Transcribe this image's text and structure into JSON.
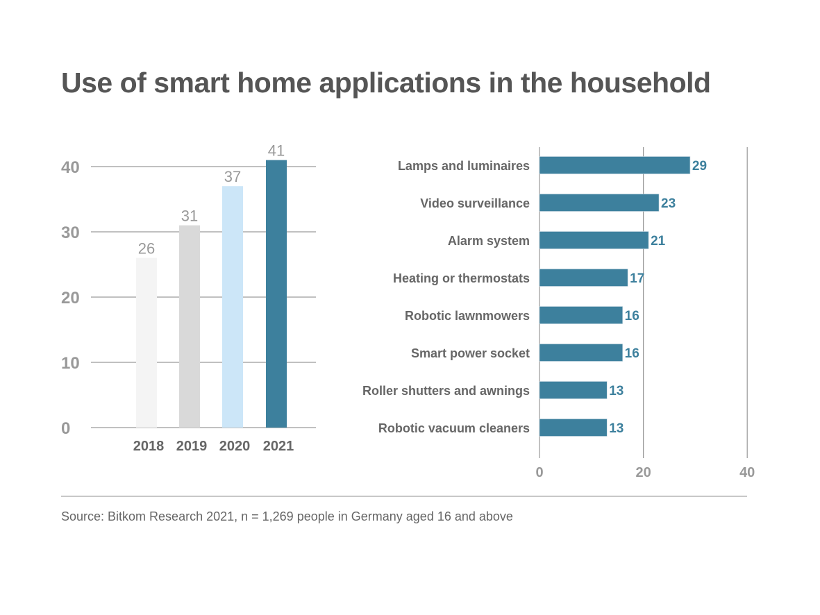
{
  "title": "Use of smart home applications in the household",
  "source": "Source: Bitkom Research 2021, n = 1,269 people in Germany aged 16 and above",
  "chart_data": [
    {
      "type": "bar",
      "orientation": "vertical",
      "categories": [
        "2018",
        "2019",
        "2020",
        "2021"
      ],
      "values": [
        26,
        31,
        37,
        41
      ],
      "labels": [
        "26",
        "31",
        "37",
        "41"
      ],
      "colors": [
        "#f4f4f4",
        "#d9d9d9",
        "#cce6f8",
        "#3d809d"
      ],
      "ylim": [
        0,
        40
      ],
      "yticks": [
        0,
        10,
        20,
        30,
        40
      ],
      "ytick_labels": [
        "0",
        "10",
        "20",
        "30",
        "40"
      ],
      "grid": true
    },
    {
      "type": "bar",
      "orientation": "horizontal",
      "categories": [
        "Lamps and luminaires",
        "Video surveillance",
        "Alarm system",
        "Heating or thermostats",
        "Robotic lawnmowers",
        "Smart power socket",
        "Roller shutters and awnings",
        "Robotic vacuum cleaners"
      ],
      "values": [
        29,
        23,
        21,
        17,
        16,
        16,
        13,
        13
      ],
      "labels": [
        "29",
        "23",
        "21",
        "17",
        "16",
        "16",
        "13",
        "13"
      ],
      "color": "#3d809d",
      "xlim": [
        0,
        40
      ],
      "xticks": [
        0,
        20,
        40
      ],
      "xtick_labels": [
        "0",
        "20",
        "40"
      ],
      "grid": true
    }
  ]
}
